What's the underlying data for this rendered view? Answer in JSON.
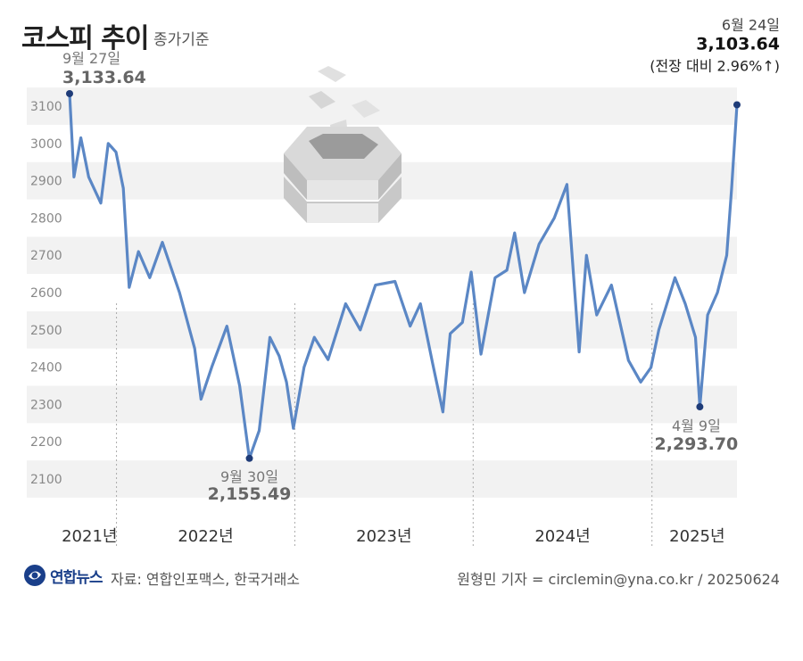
{
  "header": {
    "title": "코스피 추이",
    "subtitle": "종가기준"
  },
  "footer": {
    "logo_text": "연합뉴스",
    "source": "자료: 연합인포맥스, 한국거래소",
    "credit": "원형민 기자 = circlemin@yna.co.kr / 20250624"
  },
  "colors": {
    "line": "#5b87c5",
    "point": "#1f3c78",
    "bar": "#f2f2f2"
  },
  "chart_data": {
    "type": "line",
    "ylim": [
      2050,
      3150
    ],
    "yticks": [
      2100,
      2200,
      2300,
      2400,
      2500,
      2600,
      2700,
      2800,
      2900,
      3000,
      3100
    ],
    "year_labels": [
      "2021년",
      "2022년",
      "2023년",
      "2024년",
      "2025년"
    ],
    "year_boundaries": [
      "2022-01-01",
      "2023-01-01",
      "2024-01-01",
      "2025-01-01"
    ],
    "annotations": [
      {
        "date": "2021-09-27",
        "date_label": "9월 27일",
        "value": 3133.64,
        "value_label": "3,133.64"
      },
      {
        "date": "2022-09-30",
        "date_label": "9월 30일",
        "value": 2155.49,
        "value_label": "2,155.49"
      },
      {
        "date": "2025-04-09",
        "date_label": "4월 9일",
        "value": 2293.7,
        "value_label": "2,293.70"
      },
      {
        "date": "2025-06-24",
        "date_label": "6월 24일",
        "value": 3103.64,
        "value_label": "3,103.64",
        "note": "(전장 대비 2.96%↑)"
      }
    ],
    "series": [
      {
        "x": [
          "2021-09-27",
          "2021-10-06",
          "2021-10-20",
          "2021-11-05",
          "2021-11-30",
          "2021-12-15",
          "2021-12-31",
          "2022-01-15",
          "2022-01-27",
          "2022-02-15",
          "2022-03-10",
          "2022-04-05",
          "2022-05-10",
          "2022-06-10",
          "2022-06-23",
          "2022-07-15",
          "2022-08-15",
          "2022-09-10",
          "2022-09-30",
          "2022-10-20",
          "2022-11-11",
          "2022-11-30",
          "2022-12-15",
          "2022-12-29",
          "2023-01-20",
          "2023-02-10",
          "2023-03-10",
          "2023-04-15",
          "2023-05-15",
          "2023-06-15",
          "2023-07-25",
          "2023-08-25",
          "2023-09-15",
          "2023-10-10",
          "2023-10-31",
          "2023-11-15",
          "2023-12-10",
          "2023-12-28",
          "2024-01-17",
          "2024-02-15",
          "2024-03-10",
          "2024-03-26",
          "2024-04-15",
          "2024-05-15",
          "2024-06-15",
          "2024-07-11",
          "2024-08-05",
          "2024-08-20",
          "2024-09-10",
          "2024-10-10",
          "2024-11-14",
          "2024-12-09",
          "2024-12-30",
          "2025-01-15",
          "2025-02-17",
          "2025-03-10",
          "2025-03-31",
          "2025-04-09",
          "2025-04-25",
          "2025-05-15",
          "2025-06-03",
          "2025-06-13",
          "2025-06-24"
        ],
        "values": [
          3133.64,
          2910,
          3015,
          2910,
          2840,
          3000,
          2977,
          2880,
          2614,
          2710,
          2640,
          2735,
          2600,
          2450,
          2314,
          2400,
          2510,
          2350,
          2155.49,
          2230,
          2480,
          2430,
          2360,
          2236,
          2400,
          2480,
          2420,
          2570,
          2500,
          2620,
          2630,
          2510,
          2570,
          2410,
          2280,
          2490,
          2520,
          2655,
          2435,
          2640,
          2660,
          2760,
          2600,
          2730,
          2800,
          2890,
          2441,
          2700,
          2540,
          2620,
          2418,
          2360,
          2399,
          2500,
          2640,
          2570,
          2480,
          2293.7,
          2540,
          2600,
          2700,
          2880,
          3103.64
        ]
      }
    ]
  }
}
